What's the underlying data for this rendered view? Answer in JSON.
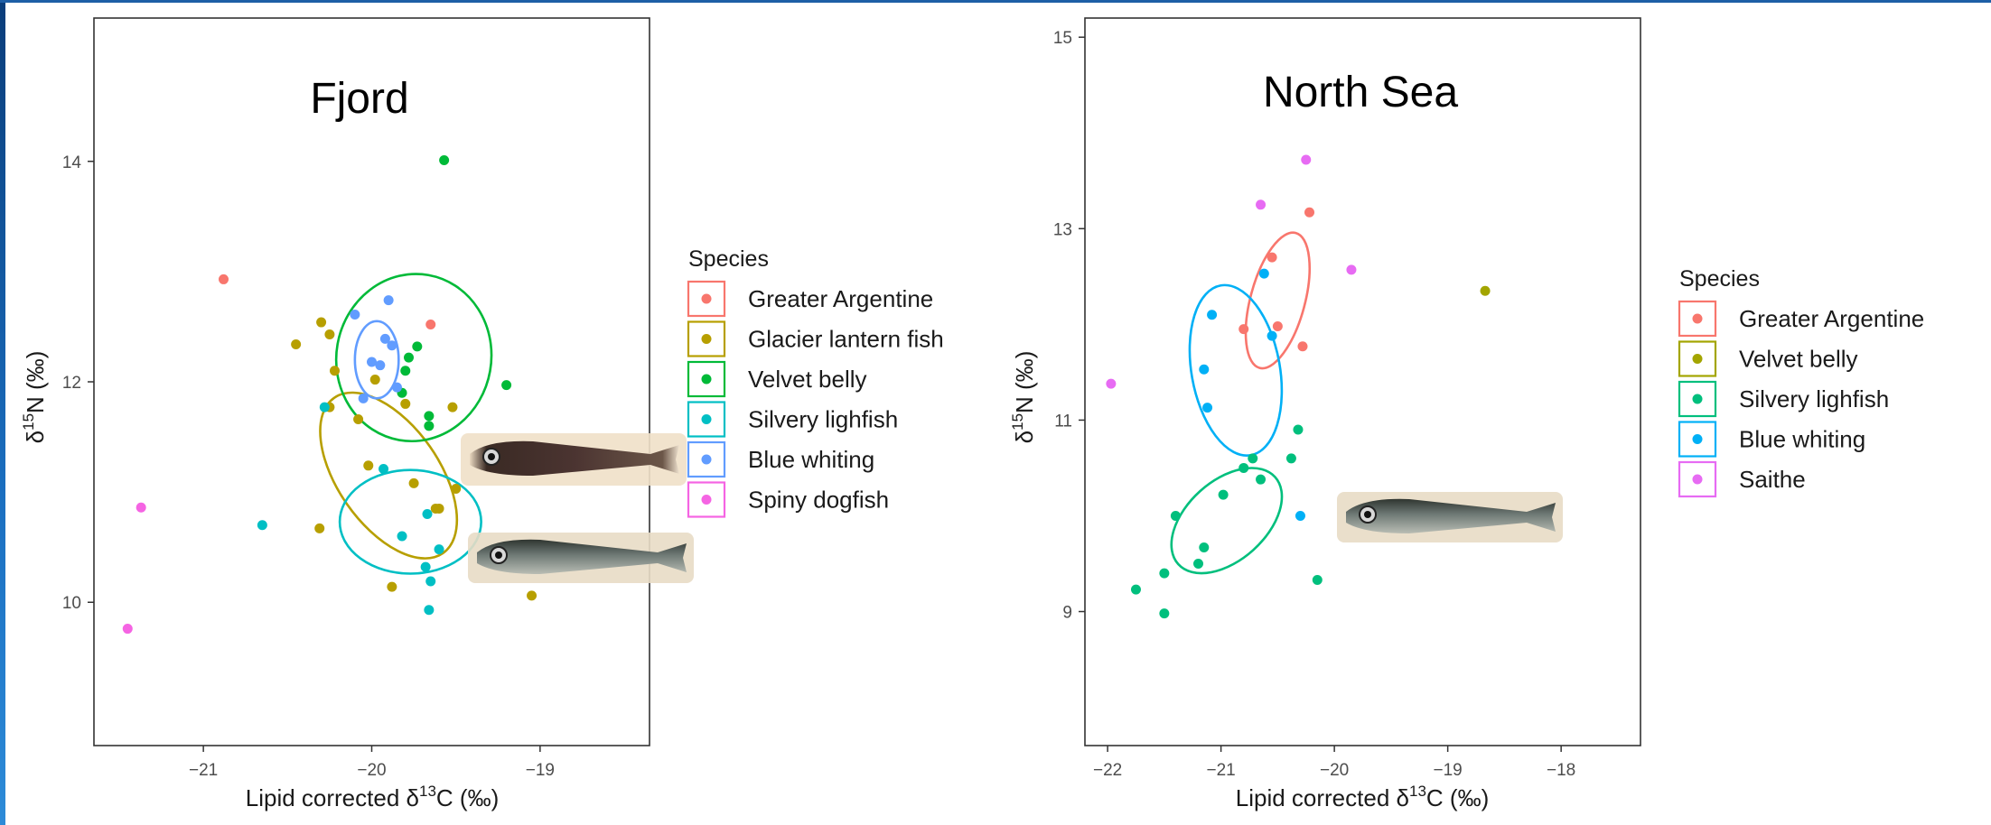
{
  "chart_data": [
    {
      "type": "scatter",
      "title": "Fjord",
      "xlabel": {
        "pre": "Lipid corrected δ",
        "sup": "13",
        "post": "C (‰)"
      },
      "ylabel": {
        "pre": "δ",
        "sup": "15",
        "post": "N (‰)"
      },
      "xlim": [
        -21.65,
        -18.35
      ],
      "ylim": [
        8.7,
        15.3
      ],
      "xticks": [
        -21,
        -20,
        -19
      ],
      "yticks": [
        10,
        12,
        14
      ],
      "grid": false,
      "legend": {
        "title": "Species",
        "placement": "right"
      },
      "series": [
        {
          "name": "Greater Argentine",
          "color": "#F8766D",
          "points": [
            [
              -20.88,
              12.93
            ],
            [
              -19.65,
              12.52
            ]
          ],
          "ellipse": null
        },
        {
          "name": "Glacier lantern fish",
          "color": "#B79F00",
          "points": [
            [
              -20.45,
              12.34
            ],
            [
              -20.3,
              12.54
            ],
            [
              -20.25,
              12.43
            ],
            [
              -20.22,
              12.1
            ],
            [
              -20.25,
              11.77
            ],
            [
              -20.08,
              11.66
            ],
            [
              -19.98,
              12.02
            ],
            [
              -19.8,
              11.8
            ],
            [
              -19.52,
              11.77
            ],
            [
              -20.02,
              11.24
            ],
            [
              -19.75,
              11.08
            ],
            [
              -19.5,
              11.03
            ],
            [
              -19.6,
              10.85
            ],
            [
              -19.62,
              10.85
            ],
            [
              -20.31,
              10.67
            ],
            [
              -19.88,
              10.14
            ],
            [
              -19.05,
              10.06
            ]
          ],
          "ellipse": {
            "cx": -19.9,
            "cy": 11.15,
            "rx": 0.3,
            "ry": 0.86,
            "rot": -35
          }
        },
        {
          "name": "Velvet belly",
          "color": "#00BA38",
          "points": [
            [
              -19.57,
              14.01
            ],
            [
              -19.2,
              11.97
            ],
            [
              -19.73,
              12.32
            ],
            [
              -19.78,
              12.22
            ],
            [
              -19.8,
              12.1
            ],
            [
              -19.82,
              11.9
            ],
            [
              -19.66,
              11.69
            ],
            [
              -19.66,
              11.6
            ]
          ],
          "ellipse": {
            "cx": -19.75,
            "cy": 12.22,
            "rx": 0.46,
            "ry": 0.76,
            "rot": 10
          }
        },
        {
          "name": "Silvery lighfish",
          "color": "#00BFC4",
          "points": [
            [
              -20.65,
              10.7
            ],
            [
              -20.28,
              11.77
            ],
            [
              -19.93,
              11.21
            ],
            [
              -19.82,
              10.6
            ],
            [
              -19.67,
              10.8
            ],
            [
              -19.6,
              10.48
            ],
            [
              -19.68,
              10.32
            ],
            [
              -19.65,
              10.19
            ],
            [
              -19.66,
              9.93
            ]
          ],
          "ellipse": {
            "cx": -19.77,
            "cy": 10.73,
            "rx": 0.42,
            "ry": 0.47,
            "rot": 0
          }
        },
        {
          "name": "Blue whiting",
          "color": "#619CFF",
          "points": [
            [
              -20.1,
              12.61
            ],
            [
              -19.9,
              12.74
            ],
            [
              -20.0,
              12.18
            ],
            [
              -19.95,
              12.15
            ],
            [
              -19.88,
              12.33
            ],
            [
              -19.92,
              12.39
            ],
            [
              -20.05,
              11.85
            ],
            [
              -19.85,
              11.95
            ]
          ],
          "ellipse": {
            "cx": -19.97,
            "cy": 12.2,
            "rx": 0.13,
            "ry": 0.35,
            "rot": 0
          }
        },
        {
          "name": "Spiny dogfish",
          "color": "#F564E3",
          "points": [
            [
              -21.37,
              10.86
            ],
            [
              -21.45,
              9.76
            ]
          ],
          "ellipse": null
        }
      ]
    },
    {
      "type": "scatter",
      "title": "North Sea",
      "xlabel": {
        "pre": "Lipid corrected δ",
        "sup": "13",
        "post": "C (‰)"
      },
      "ylabel": {
        "pre": "δ",
        "sup": "15",
        "post": "N (‰)"
      },
      "xlim": [
        -22.2,
        -17.3
      ],
      "ylim": [
        7.6,
        15.2
      ],
      "xticks": [
        -22,
        -21,
        -20,
        -19,
        -18
      ],
      "yticks": [
        9,
        11,
        13,
        15
      ],
      "grid": false,
      "legend": {
        "title": "Species",
        "placement": "right"
      },
      "series": [
        {
          "name": "Greater Argentine",
          "color": "#F8766D",
          "points": [
            [
              -20.55,
              12.7
            ],
            [
              -20.22,
              13.17
            ],
            [
              -20.8,
              11.95
            ],
            [
              -20.28,
              11.77
            ],
            [
              -20.5,
              11.98
            ]
          ],
          "ellipse": {
            "cx": -20.5,
            "cy": 12.25,
            "rx": 0.24,
            "ry": 0.73,
            "rot": 15
          }
        },
        {
          "name": "Velvet belly",
          "color": "#A3A500",
          "points": [
            [
              -18.67,
              12.35
            ]
          ],
          "ellipse": null
        },
        {
          "name": "Silvery lighfish",
          "color": "#00BF7D",
          "points": [
            [
              -20.65,
              10.38
            ],
            [
              -20.32,
              10.9
            ],
            [
              -20.38,
              10.6
            ],
            [
              -20.72,
              10.6
            ],
            [
              -20.8,
              10.5
            ],
            [
              -20.98,
              10.22
            ],
            [
              -21.4,
              10.0
            ],
            [
              -21.5,
              9.4
            ],
            [
              -21.75,
              9.23
            ],
            [
              -21.5,
              8.98
            ],
            [
              -21.15,
              9.67
            ],
            [
              -21.2,
              9.5
            ],
            [
              -20.15,
              9.33
            ]
          ],
          "ellipse": {
            "cx": -20.95,
            "cy": 9.95,
            "rx": 0.35,
            "ry": 0.68,
            "rot": 48
          }
        },
        {
          "name": "Blue whiting",
          "color": "#00B0F6",
          "points": [
            [
              -20.62,
              12.53
            ],
            [
              -21.08,
              12.1
            ],
            [
              -21.15,
              11.53
            ],
            [
              -21.12,
              11.13
            ],
            [
              -20.55,
              11.88
            ],
            [
              -20.3,
              10.0
            ]
          ],
          "ellipse": {
            "cx": -20.87,
            "cy": 11.52,
            "rx": 0.39,
            "ry": 0.9,
            "rot": -10
          }
        },
        {
          "name": "Saithe",
          "color": "#E76BF3",
          "points": [
            [
              -21.97,
              11.38
            ],
            [
              -20.65,
              13.25
            ],
            [
              -20.25,
              13.72
            ],
            [
              -19.85,
              12.57
            ]
          ],
          "ellipse": null
        }
      ]
    }
  ]
}
